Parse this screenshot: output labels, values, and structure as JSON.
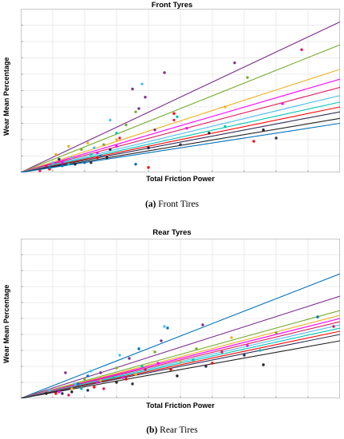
{
  "chart_data": [
    {
      "type": "scatter",
      "title": "Front Tyres",
      "xlabel": "Total Friction Power",
      "ylabel": "Wear Mean Percentage",
      "caption_label": "(a)",
      "caption_text": "Front Tires",
      "xlim": [
        0,
        10
      ],
      "ylim": [
        0,
        10
      ],
      "tick_labels_shown": false,
      "grid": true,
      "legend": "none",
      "series": [
        {
          "color": "#7e2f8e",
          "slope": 0.92,
          "points": [
            [
              6.7,
              6.7
            ],
            [
              4.5,
              6.1
            ],
            [
              3.5,
              5.1
            ],
            [
              3.9,
              4.6
            ],
            [
              3.7,
              3.9
            ],
            [
              4.2,
              2.6
            ]
          ]
        },
        {
          "color": "#77ac30",
          "slope": 0.78,
          "points": [
            [
              7.1,
              5.8
            ],
            [
              3.6,
              3.7
            ],
            [
              3.3,
              2.9
            ],
            [
              2.6,
              1.7
            ],
            [
              1.9,
              1.4
            ]
          ]
        },
        {
          "color": "#edb120",
          "slope": 0.63,
          "points": [
            [
              6.4,
              4.0
            ],
            [
              3.0,
              2.0
            ],
            [
              2.1,
              1.8
            ],
            [
              1.5,
              1.6
            ],
            [
              1.1,
              1.1
            ]
          ]
        },
        {
          "color": "#ff00ff",
          "slope": 0.57,
          "points": [
            [
              8.2,
              4.2
            ],
            [
              5.2,
              2.7
            ],
            [
              3.0,
              1.6
            ],
            [
              2.4,
              1.2
            ],
            [
              1.3,
              0.6
            ]
          ]
        },
        {
          "color": "#e41a5a",
          "slope": 0.52,
          "points": [
            [
              8.8,
              7.5
            ],
            [
              4.8,
              3.2
            ],
            [
              3.1,
              2.1
            ],
            [
              0.8,
              0.4
            ],
            [
              0.6,
              0.1
            ]
          ]
        },
        {
          "color": "#4dbeee",
          "slope": 0.47,
          "points": [
            [
              3.8,
              5.4
            ],
            [
              2.8,
              3.2
            ],
            [
              2.3,
              1.5
            ],
            [
              1.6,
              0.9
            ],
            [
              1.0,
              0.6
            ]
          ]
        },
        {
          "color": "#00c4b4",
          "slope": 0.43,
          "points": [
            [
              6.4,
              2.8
            ],
            [
              4.9,
              3.4
            ],
            [
              3.0,
              2.4
            ],
            [
              2.2,
              1.1
            ],
            [
              1.5,
              0.5
            ]
          ]
        },
        {
          "color": "#ff0000",
          "slope": 0.4,
          "points": [
            [
              7.3,
              1.9
            ],
            [
              4.8,
              3.6
            ],
            [
              4.0,
              0.3
            ],
            [
              2.4,
              0.9
            ],
            [
              0.9,
              0.2
            ]
          ]
        },
        {
          "color": "#2c2c54",
          "slope": 0.37,
          "points": [
            [
              8.0,
              2.1
            ],
            [
              5.0,
              1.7
            ],
            [
              2.8,
              1.4
            ],
            [
              2.2,
              0.6
            ],
            [
              1.2,
              0.8
            ]
          ]
        },
        {
          "color": "#222222",
          "slope": 0.33,
          "points": [
            [
              7.6,
              2.6
            ],
            [
              5.9,
              2.4
            ],
            [
              4.0,
              1.5
            ],
            [
              2.7,
              0.9
            ],
            [
              1.7,
              0.5
            ]
          ]
        },
        {
          "color": "#0072bd",
          "slope": 0.3,
          "points": [
            [
              2.5,
              1.0
            ],
            [
              2.0,
              0.6
            ],
            [
              1.3,
              0.4
            ],
            [
              0.9,
              0.3
            ],
            [
              3.6,
              0.5
            ]
          ]
        }
      ]
    },
    {
      "type": "scatter",
      "title": "Rear Tyres",
      "xlabel": "Total Friction Power",
      "ylabel": "Wear Mean Percentage",
      "caption_label": "(b)",
      "caption_text": "Rear Tires",
      "xlim": [
        0,
        10
      ],
      "ylim": [
        0,
        10
      ],
      "tick_labels_shown": false,
      "grid": true,
      "legend": "none",
      "series": [
        {
          "color": "#0072bd",
          "slope": 0.78,
          "points": [
            [
              9.3,
              5.1
            ],
            [
              4.6,
              4.4
            ],
            [
              3.7,
              3.1
            ],
            [
              2.1,
              1.4
            ],
            [
              1.8,
              0.9
            ]
          ]
        },
        {
          "color": "#7e2f8e",
          "slope": 0.64,
          "points": [
            [
              5.7,
              4.6
            ],
            [
              4.4,
              3.6
            ],
            [
              3.4,
              2.5
            ],
            [
              2.5,
              1.6
            ],
            [
              1.4,
              1.6
            ]
          ]
        },
        {
          "color": "#77ac30",
          "slope": 0.55,
          "points": [
            [
              8.0,
              4.1
            ],
            [
              5.5,
              3.1
            ],
            [
              4.2,
              2.9
            ],
            [
              3.0,
              1.9
            ],
            [
              2.0,
              1.2
            ]
          ]
        },
        {
          "color": "#edb120",
          "slope": 0.52,
          "points": [
            [
              6.6,
              3.8
            ],
            [
              5.0,
              2.3
            ],
            [
              3.6,
              1.5
            ],
            [
              2.5,
              1.1
            ],
            [
              1.6,
              0.6
            ]
          ]
        },
        {
          "color": "#ff00ff",
          "slope": 0.5,
          "points": [
            [
              7.1,
              3.3
            ],
            [
              4.3,
              2.2
            ],
            [
              3.2,
              1.3
            ],
            [
              2.4,
              1.0
            ],
            [
              1.2,
              0.4
            ]
          ]
        },
        {
          "color": "#e41a5a",
          "slope": 0.48,
          "points": [
            [
              9.8,
              4.5
            ],
            [
              6.3,
              2.9
            ],
            [
              3.9,
              1.8
            ],
            [
              2.6,
              0.6
            ],
            [
              1.5,
              0.2
            ]
          ]
        },
        {
          "color": "#4dbeee",
          "slope": 0.46,
          "points": [
            [
              4.5,
              4.5
            ],
            [
              3.1,
              2.7
            ],
            [
              2.2,
              1.7
            ],
            [
              1.7,
              0.9
            ],
            [
              0.9,
              0.5
            ]
          ]
        },
        {
          "color": "#00c4b4",
          "slope": 0.44,
          "points": [
            [
              7.5,
              3.0
            ],
            [
              5.4,
              2.4
            ],
            [
              3.8,
              2.0
            ],
            [
              2.9,
              1.3
            ],
            [
              1.9,
              0.6
            ]
          ]
        },
        {
          "color": "#ff0000",
          "slope": 0.42,
          "points": [
            [
              6.0,
              2.2
            ],
            [
              4.7,
              1.8
            ],
            [
              3.3,
              1.2
            ],
            [
              2.3,
              0.7
            ],
            [
              1.1,
              0.3
            ]
          ]
        },
        {
          "color": "#2c2c54",
          "slope": 0.4,
          "points": [
            [
              7.0,
              2.7
            ],
            [
              5.8,
              2.0
            ],
            [
              3.5,
              0.9
            ],
            [
              2.1,
              0.5
            ],
            [
              1.3,
              0.3
            ]
          ]
        },
        {
          "color": "#222222",
          "slope": 0.36,
          "points": [
            [
              7.6,
              2.1
            ],
            [
              4.9,
              1.4
            ],
            [
              3.0,
              1.0
            ],
            [
              1.6,
              0.4
            ],
            [
              0.8,
              0.3
            ]
          ]
        }
      ]
    }
  ]
}
